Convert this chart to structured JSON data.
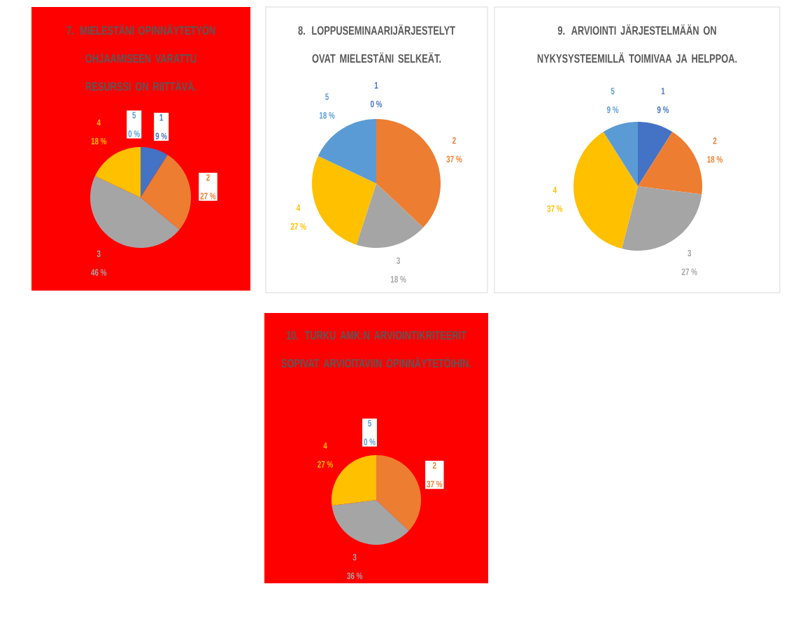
{
  "chart_data": [
    {
      "type": "pie",
      "title": "7. MIELESTÄNI OPINNÄYTETYÖN OHJAAMISEEN VARATTU RESURSSI ON RIITTÄVÄ.",
      "categories": [
        "1",
        "2",
        "3",
        "4",
        "5"
      ],
      "values": [
        9,
        27,
        46,
        18,
        0
      ],
      "value_labels": [
        "9 %",
        "27 %",
        "46 %",
        "18 %",
        "0 %"
      ],
      "colors": [
        "#4472c4",
        "#ed7d31",
        "#a5a5a5",
        "#ffc000",
        "#5b9bd5"
      ]
    },
    {
      "type": "pie",
      "title": "8. LOPPUSEMINAARIJÄRJESTELYT OVAT MIELESTÄNI SELKEÄT.",
      "categories": [
        "1",
        "2",
        "3",
        "4",
        "5"
      ],
      "values": [
        0,
        37,
        18,
        27,
        18
      ],
      "value_labels": [
        "0 %",
        "37 %",
        "18 %",
        "27 %",
        "18 %"
      ],
      "colors": [
        "#4472c4",
        "#ed7d31",
        "#a5a5a5",
        "#ffc000",
        "#5b9bd5"
      ]
    },
    {
      "type": "pie",
      "title": "9. ARVIOINTI JÄRJESTELMÄÄN ON NYKYSYSTEEMILLÄ TOIMIVAA JA HELPPOA.",
      "categories": [
        "1",
        "2",
        "3",
        "4",
        "5"
      ],
      "values": [
        9,
        18,
        27,
        37,
        9
      ],
      "value_labels": [
        "9 %",
        "18 %",
        "27 %",
        "37 %",
        "9 %"
      ],
      "colors": [
        "#4472c4",
        "#ed7d31",
        "#a5a5a5",
        "#ffc000",
        "#5b9bd5"
      ]
    },
    {
      "type": "pie",
      "title": "10. TURKU AMK:N ARVIOINTIKRITEERIT SOPIVAT ARVIOITAVIIN OPINNÄYTETÖIHIN.",
      "categories": [
        "2",
        "3",
        "4",
        "5"
      ],
      "values": [
        37,
        36,
        27,
        0
      ],
      "value_labels": [
        "37 %",
        "36 %",
        "27 %",
        "0 %"
      ],
      "colors": [
        "#ed7d31",
        "#a5a5a5",
        "#ffc000",
        "#5b9bd5"
      ]
    }
  ]
}
